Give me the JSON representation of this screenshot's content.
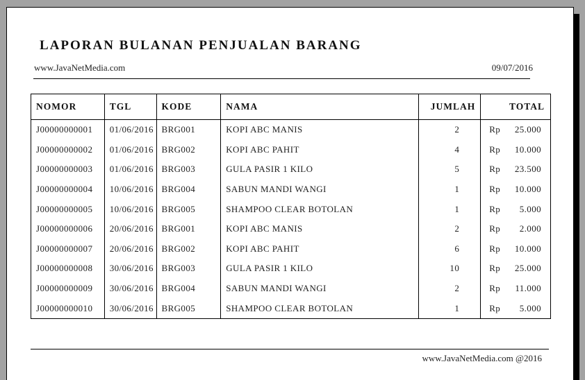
{
  "report": {
    "title": "LAPORAN BULANAN PENJUALAN BARANG",
    "website": "www.JavaNetMedia.com",
    "date": "09/07/2016",
    "footer": "www.JavaNetMedia.com @2016"
  },
  "table": {
    "columns": [
      "NOMOR",
      "TGL",
      "KODE",
      "NAMA",
      "JUMLAH",
      "TOTAL"
    ],
    "currency_prefix": "Rp",
    "rows": [
      {
        "nomor": "J00000000001",
        "tgl": "01/06/2016",
        "kode": "BRG001",
        "nama": "KOPI ABC MANIS",
        "jumlah": "2",
        "total": "25.000"
      },
      {
        "nomor": "J00000000002",
        "tgl": "01/06/2016",
        "kode": "BRG002",
        "nama": "KOPI ABC PAHIT",
        "jumlah": "4",
        "total": "10.000"
      },
      {
        "nomor": "J00000000003",
        "tgl": "01/06/2016",
        "kode": "BRG003",
        "nama": "GULA PASIR 1 KILO",
        "jumlah": "5",
        "total": "23.500"
      },
      {
        "nomor": "J00000000004",
        "tgl": "10/06/2016",
        "kode": "BRG004",
        "nama": "SABUN MANDI WANGI",
        "jumlah": "1",
        "total": "10.000"
      },
      {
        "nomor": "J00000000005",
        "tgl": "10/06/2016",
        "kode": "BRG005",
        "nama": "SHAMPOO CLEAR BOTOLAN",
        "jumlah": "1",
        "total": "5.000"
      },
      {
        "nomor": "J00000000006",
        "tgl": "20/06/2016",
        "kode": "BRG001",
        "nama": "KOPI ABC MANIS",
        "jumlah": "2",
        "total": "2.000"
      },
      {
        "nomor": "J00000000007",
        "tgl": "20/06/2016",
        "kode": "BRG002",
        "nama": "KOPI ABC PAHIT",
        "jumlah": "6",
        "total": "10.000"
      },
      {
        "nomor": "J00000000008",
        "tgl": "30/06/2016",
        "kode": "BRG003",
        "nama": "GULA PASIR 1 KILO",
        "jumlah": "10",
        "total": "25.000"
      },
      {
        "nomor": "J00000000009",
        "tgl": "30/06/2016",
        "kode": "BRG004",
        "nama": "SABUN MANDI WANGI",
        "jumlah": "2",
        "total": "11.000"
      },
      {
        "nomor": "J00000000010",
        "tgl": "30/06/2016",
        "kode": "BRG005",
        "nama": "SHAMPOO CLEAR BOTOLAN",
        "jumlah": "1",
        "total": "5.000"
      }
    ]
  },
  "colors": {
    "background_gray": "#a2a2a2",
    "page_white": "#ffffff",
    "page_shadow": "#000000",
    "text": "#222222",
    "border": "#000000"
  }
}
